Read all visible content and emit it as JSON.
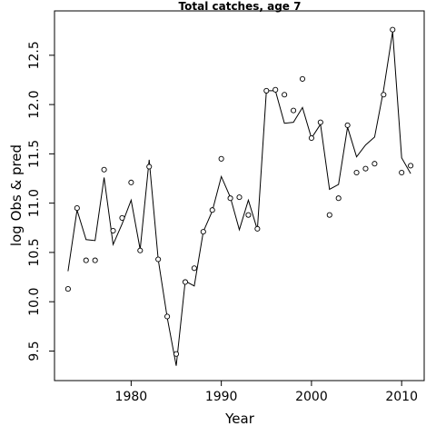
{
  "chart_data": {
    "type": "line",
    "title": "Total catches, age 7",
    "xlabel": "Year",
    "ylabel": "log Obs & pred",
    "xlim": [
      1971.5,
      2012.5
    ],
    "ylim": [
      9.2,
      12.95
    ],
    "x_ticks": [
      1980,
      1990,
      2000,
      2010
    ],
    "y_ticks": [
      9.5,
      10.0,
      10.5,
      11.0,
      11.5,
      12.0,
      12.5
    ],
    "x_tick_labels": [
      "1980",
      "1990",
      "2000",
      "2010"
    ],
    "y_tick_labels": [
      "9.5",
      "10.0",
      "10.5",
      "11.0",
      "11.5",
      "12.0",
      "12.5"
    ],
    "grid": false,
    "series": [
      {
        "style": "line",
        "x": [
          1973,
          1974,
          1975,
          1976,
          1977,
          1978,
          1979,
          1980,
          1981,
          1982,
          1983,
          1984,
          1985,
          1986,
          1987,
          1988,
          1989,
          1990,
          1991,
          1992,
          1993,
          1994,
          1995,
          1996,
          1997,
          1998,
          1999,
          2000,
          2001,
          2002,
          2003,
          2004,
          2005,
          2006,
          2007,
          2008,
          2009,
          2010,
          2011
        ],
        "values": [
          10.31,
          10.93,
          10.63,
          10.62,
          11.26,
          10.58,
          10.79,
          11.03,
          10.53,
          11.44,
          10.43,
          9.84,
          9.35,
          10.21,
          10.16,
          10.71,
          10.92,
          11.27,
          11.06,
          10.73,
          11.03,
          10.73,
          12.14,
          12.14,
          11.81,
          11.82,
          11.97,
          11.66,
          11.8,
          11.14,
          11.19,
          11.77,
          11.47,
          11.59,
          11.67,
          12.15,
          12.74,
          11.46,
          11.3
        ]
      },
      {
        "style": "points",
        "x": [
          1973,
          1974,
          1975,
          1976,
          1977,
          1978,
          1979,
          1980,
          1981,
          1982,
          1983,
          1984,
          1985,
          1986,
          1987,
          1988,
          1989,
          1990,
          1991,
          1992,
          1993,
          1994,
          1995,
          1996,
          1997,
          1998,
          1999,
          2000,
          2001,
          2002,
          2003,
          2004,
          2005,
          2006,
          2007,
          2008,
          2009,
          2010,
          2011
        ],
        "values": [
          10.13,
          10.95,
          10.42,
          10.42,
          11.34,
          10.72,
          10.85,
          11.21,
          10.52,
          11.37,
          10.43,
          9.85,
          9.47,
          10.2,
          10.34,
          10.71,
          10.93,
          11.45,
          11.05,
          11.06,
          10.88,
          10.74,
          12.14,
          12.15,
          12.1,
          11.94,
          12.26,
          11.66,
          11.82,
          10.88,
          11.05,
          11.79,
          11.31,
          11.35,
          11.4,
          12.1,
          12.76,
          11.31,
          11.38
        ]
      }
    ]
  }
}
